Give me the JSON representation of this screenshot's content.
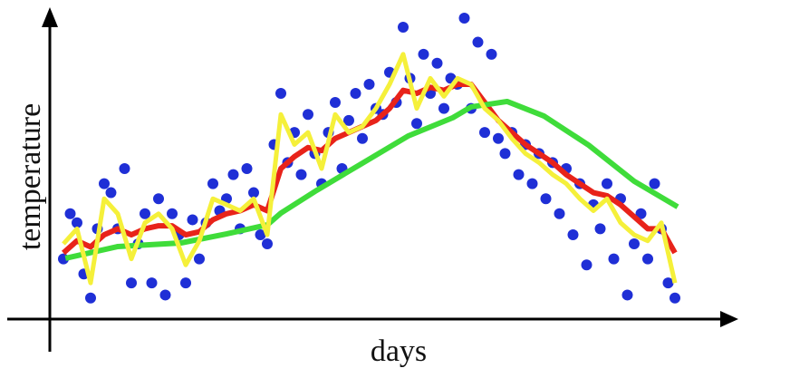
{
  "chart_data": {
    "type": "scatter",
    "x_label": "days",
    "y_label": "temperature",
    "xlim": [
      0,
      100
    ],
    "ylim": [
      0,
      100
    ],
    "points": {
      "color": "#1f2fd6",
      "x": [
        2,
        3,
        4,
        5,
        6,
        7,
        8,
        9,
        10,
        11,
        12,
        13,
        14,
        15,
        16,
        17,
        18,
        19,
        20,
        21,
        22,
        23,
        24,
        25,
        26,
        27,
        28,
        29,
        30,
        31,
        32,
        33,
        34,
        35,
        36,
        37,
        38,
        39,
        40,
        41,
        42,
        43,
        44,
        45,
        46,
        47,
        48,
        49,
        50,
        51,
        52,
        53,
        54,
        55,
        56,
        57,
        58,
        59,
        60,
        61,
        62,
        63,
        64,
        65,
        66,
        67,
        68,
        69,
        70,
        71,
        72,
        73,
        74,
        75,
        76,
        77,
        78,
        79,
        80,
        81,
        82,
        83,
        84,
        85,
        86,
        87,
        88,
        89,
        90,
        91,
        92
      ],
      "values": [
        20,
        35,
        32,
        15,
        7,
        30,
        45,
        42,
        30,
        50,
        12,
        25,
        35,
        12,
        40,
        8,
        35,
        28,
        12,
        33,
        20,
        32,
        45,
        36,
        40,
        48,
        30,
        50,
        42,
        28,
        25,
        58,
        75,
        52,
        62,
        48,
        68,
        55,
        45,
        62,
        72,
        50,
        66,
        75,
        60,
        78,
        70,
        68,
        82,
        72,
        97,
        80,
        65,
        88,
        75,
        85,
        70,
        80,
        78,
        100,
        70,
        92,
        62,
        88,
        60,
        55,
        62,
        48,
        58,
        45,
        55,
        40,
        52,
        35,
        50,
        28,
        45,
        18,
        38,
        30,
        45,
        20,
        40,
        8,
        25,
        35,
        20,
        45,
        30,
        12,
        7
      ]
    },
    "lines": [
      {
        "color": "#e8231a",
        "width": 6,
        "x": [
          2,
          4,
          6,
          8,
          10,
          12,
          14,
          16,
          18,
          20,
          22,
          24,
          26,
          28,
          30,
          32,
          34,
          36,
          38,
          40,
          42,
          44,
          46,
          48,
          50,
          52,
          54,
          56,
          58,
          60,
          62,
          64,
          66,
          68,
          70,
          72,
          74,
          76,
          78,
          80,
          82,
          84,
          86,
          88,
          90,
          92
        ],
        "values": [
          22,
          26,
          24,
          28,
          30,
          28,
          30,
          31,
          31,
          28,
          29,
          33,
          35,
          36,
          38,
          36,
          50,
          54,
          57,
          56,
          60,
          62,
          64,
          66,
          70,
          76,
          75,
          77,
          76,
          78,
          78,
          72,
          66,
          62,
          58,
          55,
          52,
          48,
          45,
          42,
          41,
          38,
          34,
          30,
          30,
          22
        ]
      },
      {
        "color": "#3fdc3a",
        "width": 6,
        "x": [
          2.3,
          10,
          19.3,
          26,
          32,
          34,
          39.3,
          46,
          52.7,
          59.3,
          62,
          67.3,
          72.7,
          79.3,
          86,
          92.4
        ],
        "values": [
          20.2,
          24.1,
          25.3,
          28.3,
          31.3,
          35.2,
          42.8,
          51.8,
          60.8,
          66.9,
          70.5,
          72.3,
          67.5,
          57.8,
          45.8,
          37.3
        ]
      },
      {
        "color": "#f5f03a",
        "width": 5,
        "x": [
          2,
          4,
          6,
          8,
          10,
          12,
          14,
          16,
          18,
          20,
          22,
          24,
          26,
          28,
          30,
          32,
          34,
          36,
          38,
          40,
          42,
          44,
          46,
          48,
          50,
          52,
          54,
          56,
          58,
          60,
          62,
          64,
          66,
          68,
          70,
          72,
          74,
          76,
          78,
          80,
          82,
          84,
          86,
          88,
          90,
          92
        ],
        "values": [
          25,
          30,
          12,
          40,
          35,
          20,
          32,
          35,
          30,
          18,
          26,
          40,
          38,
          36,
          40,
          28,
          68,
          58,
          62,
          50,
          68,
          62,
          64,
          70,
          78,
          88,
          70,
          80,
          74,
          80,
          78,
          70,
          66,
          60,
          55,
          52,
          48,
          45,
          40,
          36,
          40,
          32,
          28,
          26,
          32,
          12
        ]
      }
    ]
  }
}
